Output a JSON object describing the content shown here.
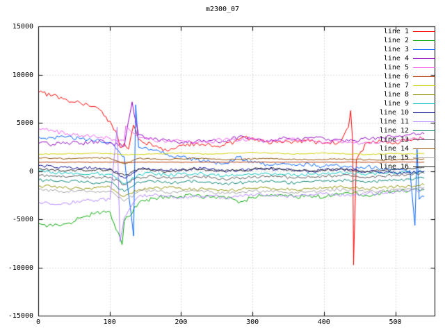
{
  "chart_data": {
    "type": "line",
    "title": "m2300_07",
    "xlabel": "",
    "ylabel": "",
    "xlim": [
      0,
      555
    ],
    "ylim": [
      -15000,
      15000
    ],
    "x_ticks": [
      0,
      100,
      200,
      300,
      400,
      500
    ],
    "y_ticks": [
      -15000,
      -10000,
      -5000,
      0,
      5000,
      10000,
      15000
    ],
    "grid": true,
    "grid_style": "dotted",
    "legend_position": "top-right",
    "background_color": "#ffffff",
    "axis_color": "#000000",
    "grid_color": "#b4b4b4",
    "x_anchors": [
      0,
      20,
      40,
      60,
      80,
      100,
      120,
      140,
      160,
      180,
      200,
      220,
      240,
      260,
      280,
      300,
      320,
      340,
      360,
      380,
      400,
      420,
      440,
      460,
      480,
      500,
      520,
      540
    ],
    "series": [
      {
        "name": "line 1",
        "color": "#ff0000",
        "noise": 260,
        "values": [
          8200,
          7900,
          7400,
          7000,
          6700,
          5200,
          2900,
          3300,
          2600,
          2100,
          2700,
          2900,
          2800,
          2700,
          3300,
          3500,
          3100,
          3000,
          3200,
          3100,
          2900,
          3000,
          2900,
          3000,
          3100,
          3000,
          3200,
          3400
        ],
        "spikes": [
          [
            108,
            4200
          ],
          [
            114,
            2500
          ],
          [
            126,
            2300
          ],
          [
            133,
            4800
          ],
          [
            434,
            4600
          ],
          [
            437,
            6300
          ],
          [
            441,
            -9700
          ],
          [
            445,
            1200
          ]
        ]
      },
      {
        "name": "line 2",
        "color": "#00a800",
        "noise": 230,
        "values": [
          -5400,
          -5700,
          -5400,
          -4800,
          -4300,
          -4200,
          -5200,
          -3300,
          -2800,
          -2700,
          -2600,
          -2500,
          -2700,
          -2600,
          -3300,
          -2700,
          -2500,
          -2400,
          -2600,
          -2500,
          -2700,
          -2400,
          -2300,
          -2500,
          -2200,
          -2100,
          -2000,
          -1900
        ],
        "spikes": [
          [
            117,
            -7600
          ]
        ]
      },
      {
        "name": "line 3",
        "color": "#0060ff",
        "noise": 220,
        "values": [
          3600,
          3500,
          3600,
          3400,
          3200,
          3000,
          1500,
          2500,
          2200,
          1800,
          1500,
          1200,
          1000,
          800,
          1500,
          900,
          700,
          800,
          600,
          700,
          500,
          600,
          400,
          500,
          300,
          200,
          100,
          -2600
        ],
        "spikes": [
          [
            133,
            -6700
          ],
          [
            136,
            6900
          ],
          [
            527,
            -5600
          ],
          [
            530,
            2300
          ],
          [
            533,
            -2900
          ]
        ]
      },
      {
        "name": "line 4",
        "color": "#9000c0",
        "noise": 220,
        "values": [
          2900,
          2800,
          3000,
          2900,
          3100,
          3000,
          2600,
          3800,
          3300,
          3200,
          3000,
          3100,
          3200,
          3100,
          3600,
          3300,
          3200,
          3400,
          3300,
          3500,
          3400,
          3300,
          3200,
          3400,
          3500,
          3600,
          3800,
          3900
        ],
        "spikes": [
          [
            131,
            7200
          ]
        ]
      },
      {
        "name": "line 5",
        "color": "#f060f0",
        "noise": 200,
        "values": [
          4400,
          4200,
          3900,
          3700,
          3600,
          3400,
          3200,
          3500,
          3300,
          3100,
          3200,
          3000,
          3100,
          3300,
          3200,
          3400,
          3200,
          3100,
          3300,
          3200,
          3000,
          3100,
          2900,
          3000,
          3100,
          3200,
          3300,
          3400
        ],
        "spikes": [
          [
            122,
            4700
          ]
        ]
      },
      {
        "name": "line 6",
        "color": "#b03000",
        "noise": 25,
        "values": [
          950,
          960,
          940,
          955,
          945,
          950,
          930,
          950,
          960,
          950,
          940,
          950,
          955,
          945,
          950,
          960,
          950,
          940,
          950,
          955,
          945,
          950,
          960,
          950,
          940,
          950,
          955,
          950
        ],
        "spikes": []
      },
      {
        "name": "line 7",
        "color": "#d0d000",
        "noise": 45,
        "values": [
          1750,
          1800,
          1850,
          1800,
          1900,
          1850,
          1700,
          1750,
          1800,
          1850,
          1900,
          1850,
          1800,
          1850,
          1900,
          1950,
          1900,
          1850,
          1800,
          1850,
          1900,
          1850,
          1800,
          1750,
          1800,
          1850,
          1800,
          1850
        ],
        "spikes": []
      },
      {
        "name": "line 8",
        "color": "#909000",
        "noise": 170,
        "values": [
          -1500,
          -1600,
          -1700,
          -1800,
          -1700,
          -1600,
          -2600,
          -1900,
          -1800,
          -1700,
          -1800,
          -1900,
          -1800,
          -2000,
          -1900,
          -1800,
          -1700,
          -1800,
          -1900,
          -1800,
          -1700,
          -1600,
          -1700,
          -1800,
          -1700,
          -1600,
          -1500,
          -1400
        ],
        "spikes": []
      },
      {
        "name": "line 9",
        "color": "#00c0c0",
        "noise": 170,
        "values": [
          0,
          -100,
          -200,
          -300,
          -200,
          -300,
          -1300,
          -300,
          -200,
          -400,
          -300,
          -200,
          -300,
          -500,
          -400,
          -300,
          -200,
          -300,
          -400,
          -300,
          -200,
          -100,
          -200,
          -300,
          -200,
          -100,
          -100,
          0
        ],
        "spikes": []
      },
      {
        "name": "line 10",
        "color": "#000090",
        "noise": 170,
        "values": [
          600,
          500,
          400,
          300,
          400,
          300,
          -700,
          300,
          200,
          100,
          200,
          300,
          200,
          0,
          100,
          200,
          300,
          200,
          100,
          0,
          100,
          200,
          100,
          0,
          -100,
          -200,
          -100,
          0
        ],
        "spikes": []
      },
      {
        "name": "line 11",
        "color": "#b080ff",
        "noise": 190,
        "values": [
          -3200,
          -3400,
          -3300,
          -3100,
          -3000,
          -2900,
          -4800,
          -2600,
          -2500,
          -2600,
          -2700,
          -2600,
          -2500,
          -2800,
          -2600,
          -2500,
          -2400,
          -2600,
          -2500,
          -2400,
          -2300,
          -2500,
          -2400,
          -2300,
          -2200,
          -2100,
          -2000,
          -1900
        ],
        "spikes": [
          [
            110,
            4600
          ],
          [
            114,
            -7300
          ]
        ]
      },
      {
        "name": "line 12",
        "color": "#008070",
        "noise": 160,
        "values": [
          -900,
          -1000,
          -1100,
          -1000,
          -1200,
          -1100,
          -2100,
          -1100,
          -1000,
          -1200,
          -1100,
          -1000,
          -1100,
          -1300,
          -1200,
          -1100,
          -1000,
          -1100,
          -1200,
          -1100,
          -1000,
          -900,
          -1000,
          -1100,
          -1000,
          -900,
          -800,
          -700
        ],
        "spikes": []
      },
      {
        "name": "line 13",
        "color": "#505050",
        "noise": 160,
        "values": [
          -400,
          -500,
          -600,
          -500,
          -700,
          -600,
          -1400,
          -600,
          -500,
          -700,
          -600,
          -500,
          -600,
          -800,
          -700,
          -600,
          -500,
          -600,
          -700,
          -600,
          -500,
          -400,
          -500,
          -600,
          -500,
          -400,
          -300,
          -200
        ],
        "spikes": []
      },
      {
        "name": "line 14",
        "color": "#905000",
        "noise": 60,
        "values": [
          1400,
          1350,
          1300,
          1350,
          1400,
          1350,
          800,
          1350,
          1300,
          1250,
          1300,
          1350,
          1300,
          1200,
          1250,
          1300,
          1350,
          1300,
          1250,
          1200,
          1250,
          1300,
          1250,
          1200,
          1150,
          1200,
          1250,
          1300
        ],
        "spikes": []
      },
      {
        "name": "line 15",
        "color": "#a0a0a0",
        "noise": 170,
        "values": [
          -1900,
          -2000,
          -2100,
          -2000,
          -2200,
          -2100,
          -3100,
          -2100,
          -2000,
          -2200,
          -2100,
          -2000,
          -2100,
          -2300,
          -2200,
          -2100,
          -2000,
          -2100,
          -2200,
          -2100,
          -2000,
          -1900,
          -2000,
          -2100,
          -2000,
          -1900,
          -1800,
          -1700
        ],
        "spikes": []
      },
      {
        "name": "line 16",
        "color": "#202020",
        "noise": 150,
        "values": [
          300,
          200,
          100,
          200,
          100,
          200,
          -400,
          200,
          100,
          0,
          100,
          200,
          100,
          0,
          100,
          200,
          300,
          200,
          100,
          0,
          100,
          200,
          100,
          0,
          100,
          200,
          300,
          400
        ],
        "spikes": []
      }
    ]
  }
}
